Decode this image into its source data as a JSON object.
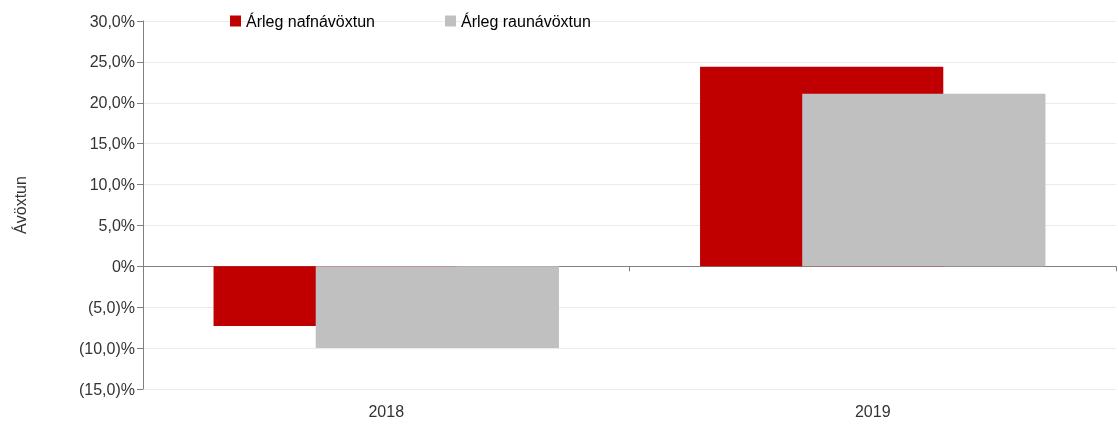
{
  "chart_data": {
    "type": "bar",
    "ylabel": "Ávöxtun",
    "categories": [
      "2018",
      "2019"
    ],
    "series": [
      {
        "name": "Árleg nafnávöxtun",
        "color": "#c00000",
        "values": [
          -7.3,
          24.4
        ]
      },
      {
        "name": "Árleg raunávöxtun",
        "color": "#bfc0bf",
        "values": [
          -10.0,
          21.1
        ]
      }
    ],
    "ylim": [
      -15,
      30
    ],
    "yticks": [
      {
        "value": -15,
        "label": "(15,0)%"
      },
      {
        "value": -10,
        "label": "(10,0)%"
      },
      {
        "value": -5,
        "label": "(5,0)%"
      },
      {
        "value": 0,
        "label": "0%"
      },
      {
        "value": 5,
        "label": "5,0%"
      },
      {
        "value": 10,
        "label": "10,0%"
      },
      {
        "value": 15,
        "label": "15,0%"
      },
      {
        "value": 20,
        "label": "20,0%"
      },
      {
        "value": 25,
        "label": "25,0%"
      },
      {
        "value": 30,
        "label": "30,0%"
      }
    ],
    "grid": "y",
    "legend": "top left"
  }
}
